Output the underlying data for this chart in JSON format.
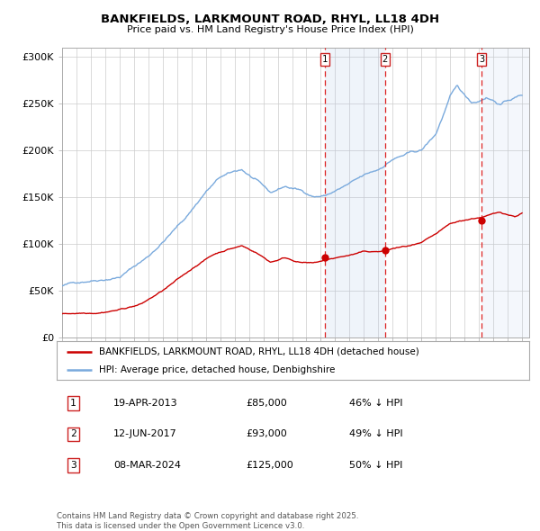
{
  "title": "BANKFIELDS, LARKMOUNT ROAD, RHYL, LL18 4DH",
  "subtitle": "Price paid vs. HM Land Registry's House Price Index (HPI)",
  "background_color": "#ffffff",
  "plot_bg_color": "#ffffff",
  "grid_color": "#cccccc",
  "hpi_color": "#7aaadd",
  "price_color": "#cc0000",
  "ylim": [
    0,
    310000
  ],
  "xlim_start": 1995.0,
  "xlim_end": 2027.5,
  "yticks": [
    0,
    50000,
    100000,
    150000,
    200000,
    250000,
    300000
  ],
  "ytick_labels": [
    "£0",
    "£50K",
    "£100K",
    "£150K",
    "£200K",
    "£250K",
    "£300K"
  ],
  "sale_dates": [
    2013.3,
    2017.45,
    2024.19
  ],
  "sale_prices": [
    85000,
    93000,
    125000
  ],
  "sale_labels": [
    "1",
    "2",
    "3"
  ],
  "sale_date_strs": [
    "19-APR-2013",
    "12-JUN-2017",
    "08-MAR-2024"
  ],
  "sale_pct_below": [
    "46%",
    "49%",
    "50%"
  ],
  "legend_label_price": "BANKFIELDS, LARKMOUNT ROAD, RHYL, LL18 4DH (detached house)",
  "legend_label_hpi": "HPI: Average price, detached house, Denbighshire",
  "footnote": "Contains HM Land Registry data © Crown copyright and database right 2025.\nThis data is licensed under the Open Government Licence v3.0."
}
